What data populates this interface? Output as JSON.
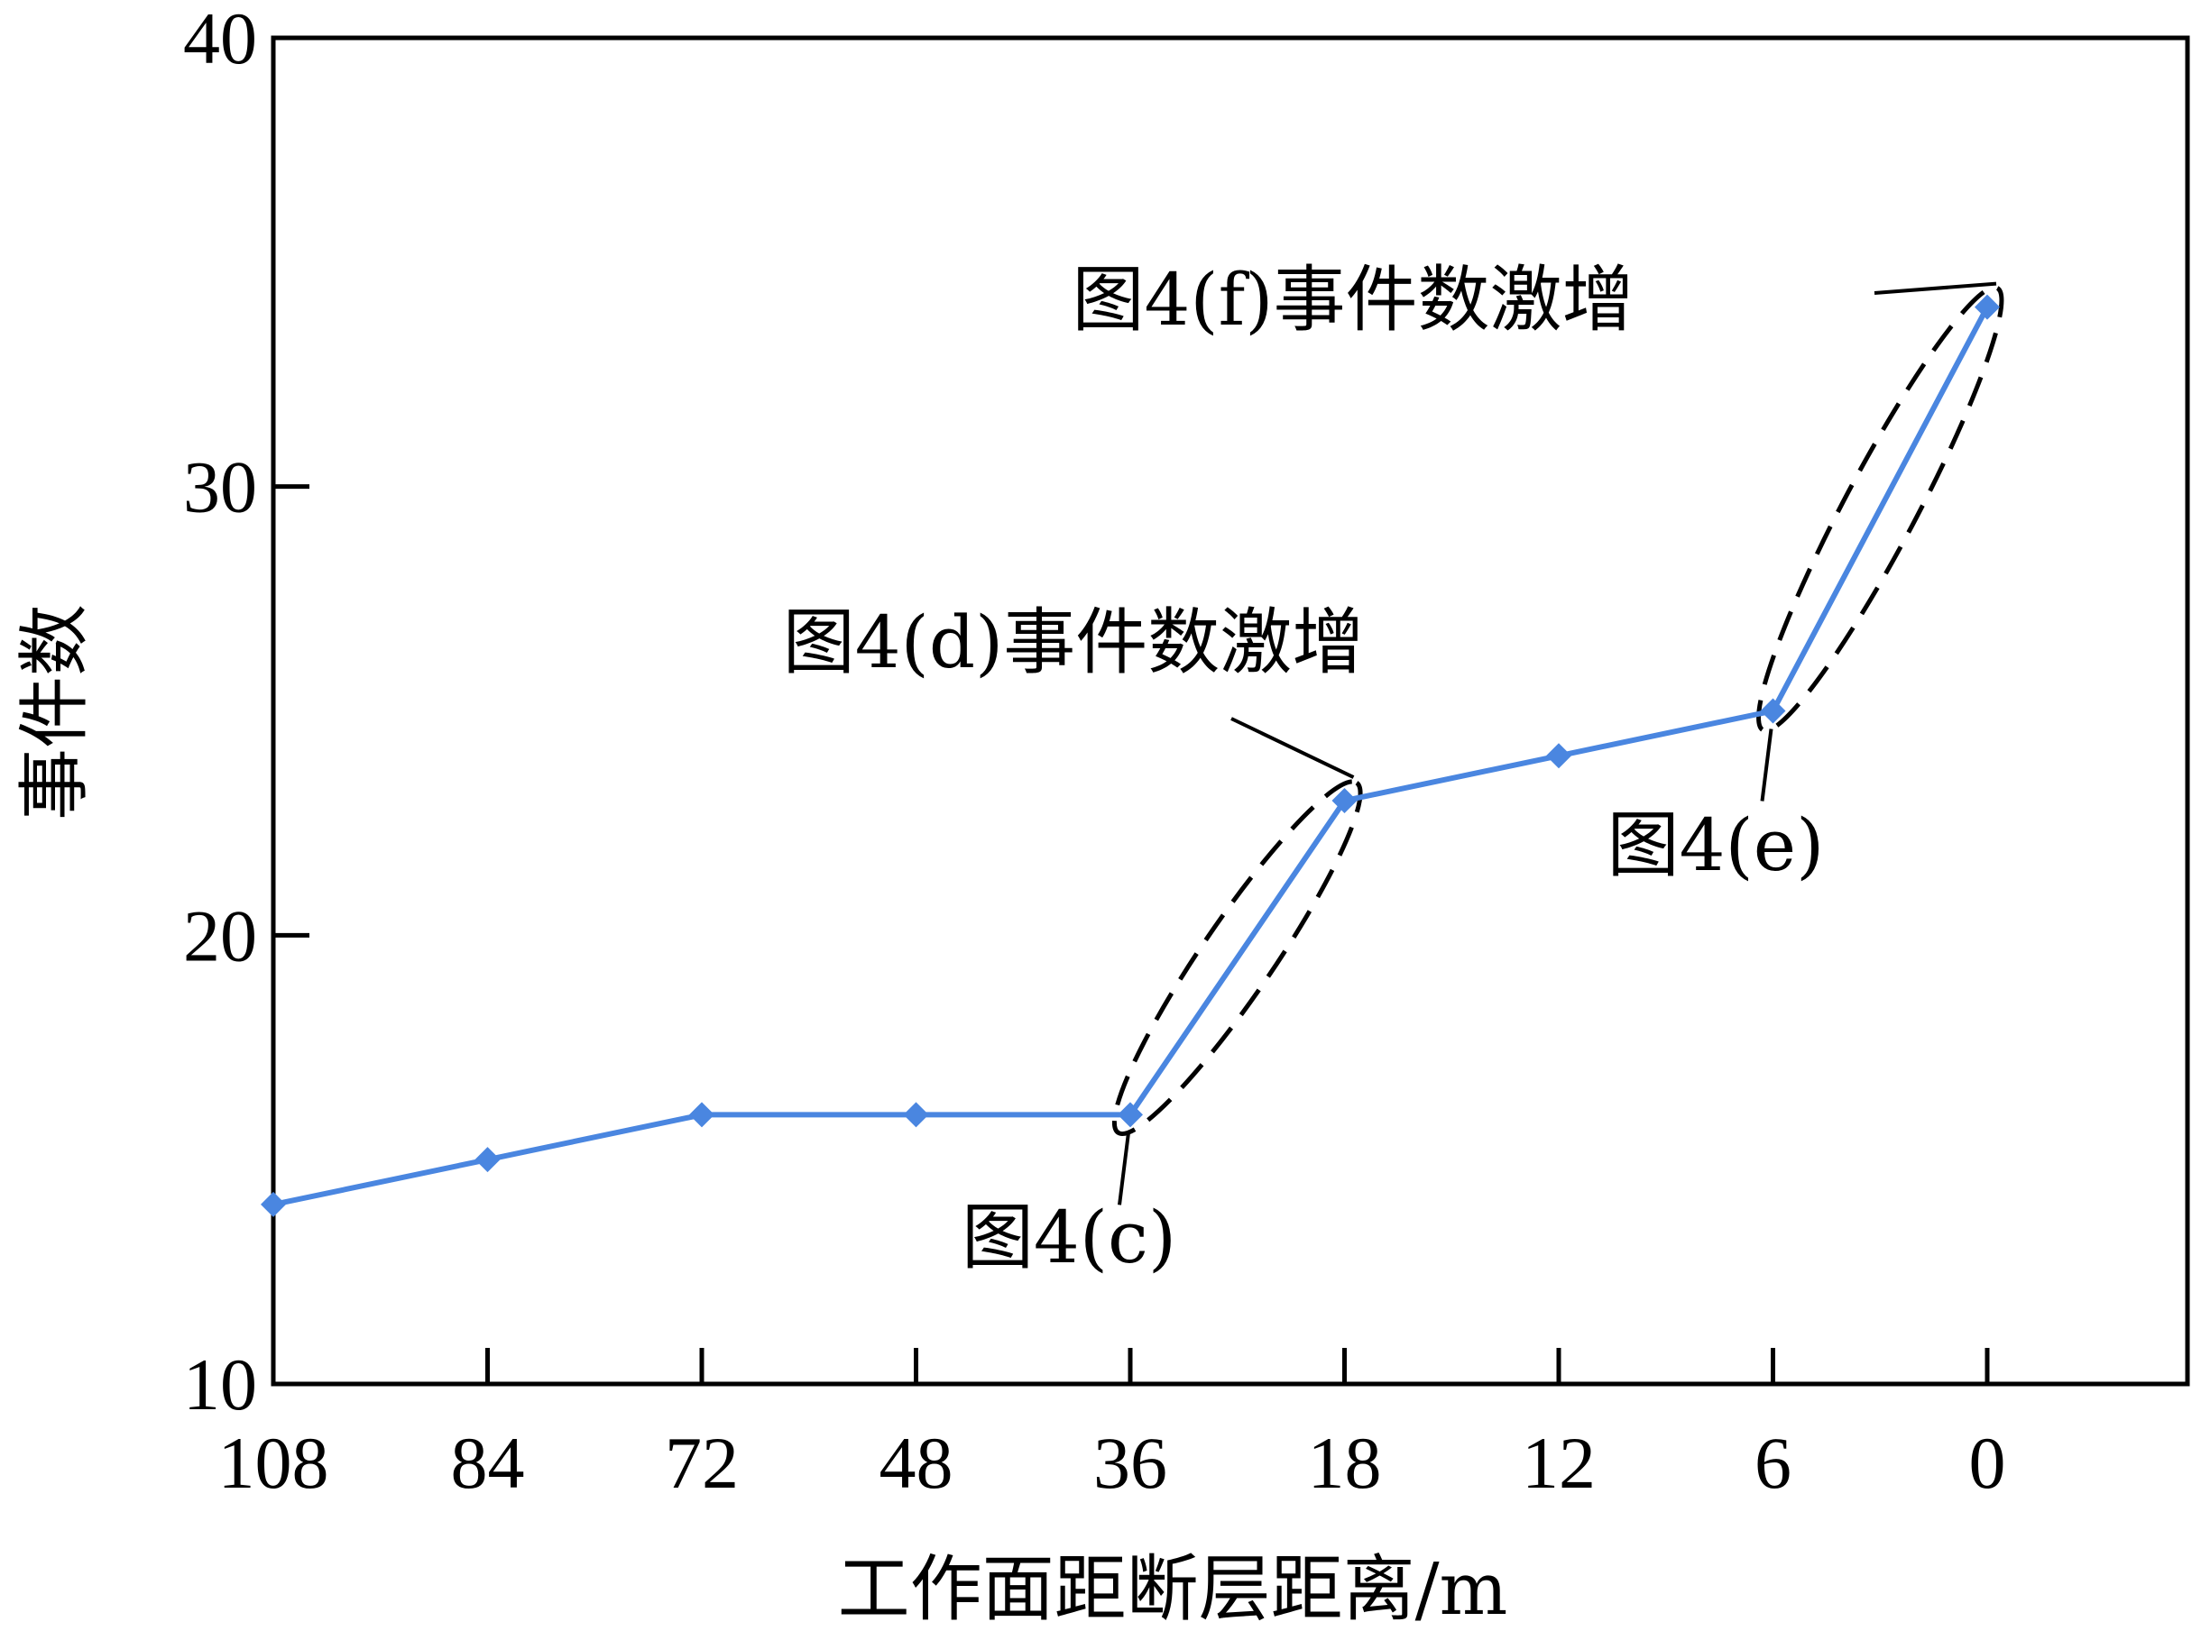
{
  "chart_data": {
    "type": "line",
    "categories": [
      "108",
      "84",
      "72",
      "48",
      "36",
      "18",
      "12",
      "6",
      "0"
    ],
    "series": [
      {
        "values": [
          14,
          15,
          16,
          16,
          16,
          23,
          24,
          25,
          34
        ],
        "color": "#4a86e0"
      }
    ],
    "xlabel": "工作面距断层距离/m",
    "ylabel": "事件数",
    "ylim": [
      10,
      40
    ],
    "yticks": [
      10,
      20,
      30,
      40
    ],
    "grid": false,
    "annotations": [
      {
        "text": "图4(c)",
        "category": "36",
        "value": 16,
        "type": "point"
      },
      {
        "text": "图4(d)事件数激增",
        "from_category": "36",
        "to_category": "18",
        "type": "ellipse"
      },
      {
        "text": "图4(e)",
        "category": "6",
        "value": 25,
        "type": "point"
      },
      {
        "text": "图4(f)事件数激增",
        "from_category": "6",
        "to_category": "0",
        "type": "ellipse"
      }
    ]
  }
}
